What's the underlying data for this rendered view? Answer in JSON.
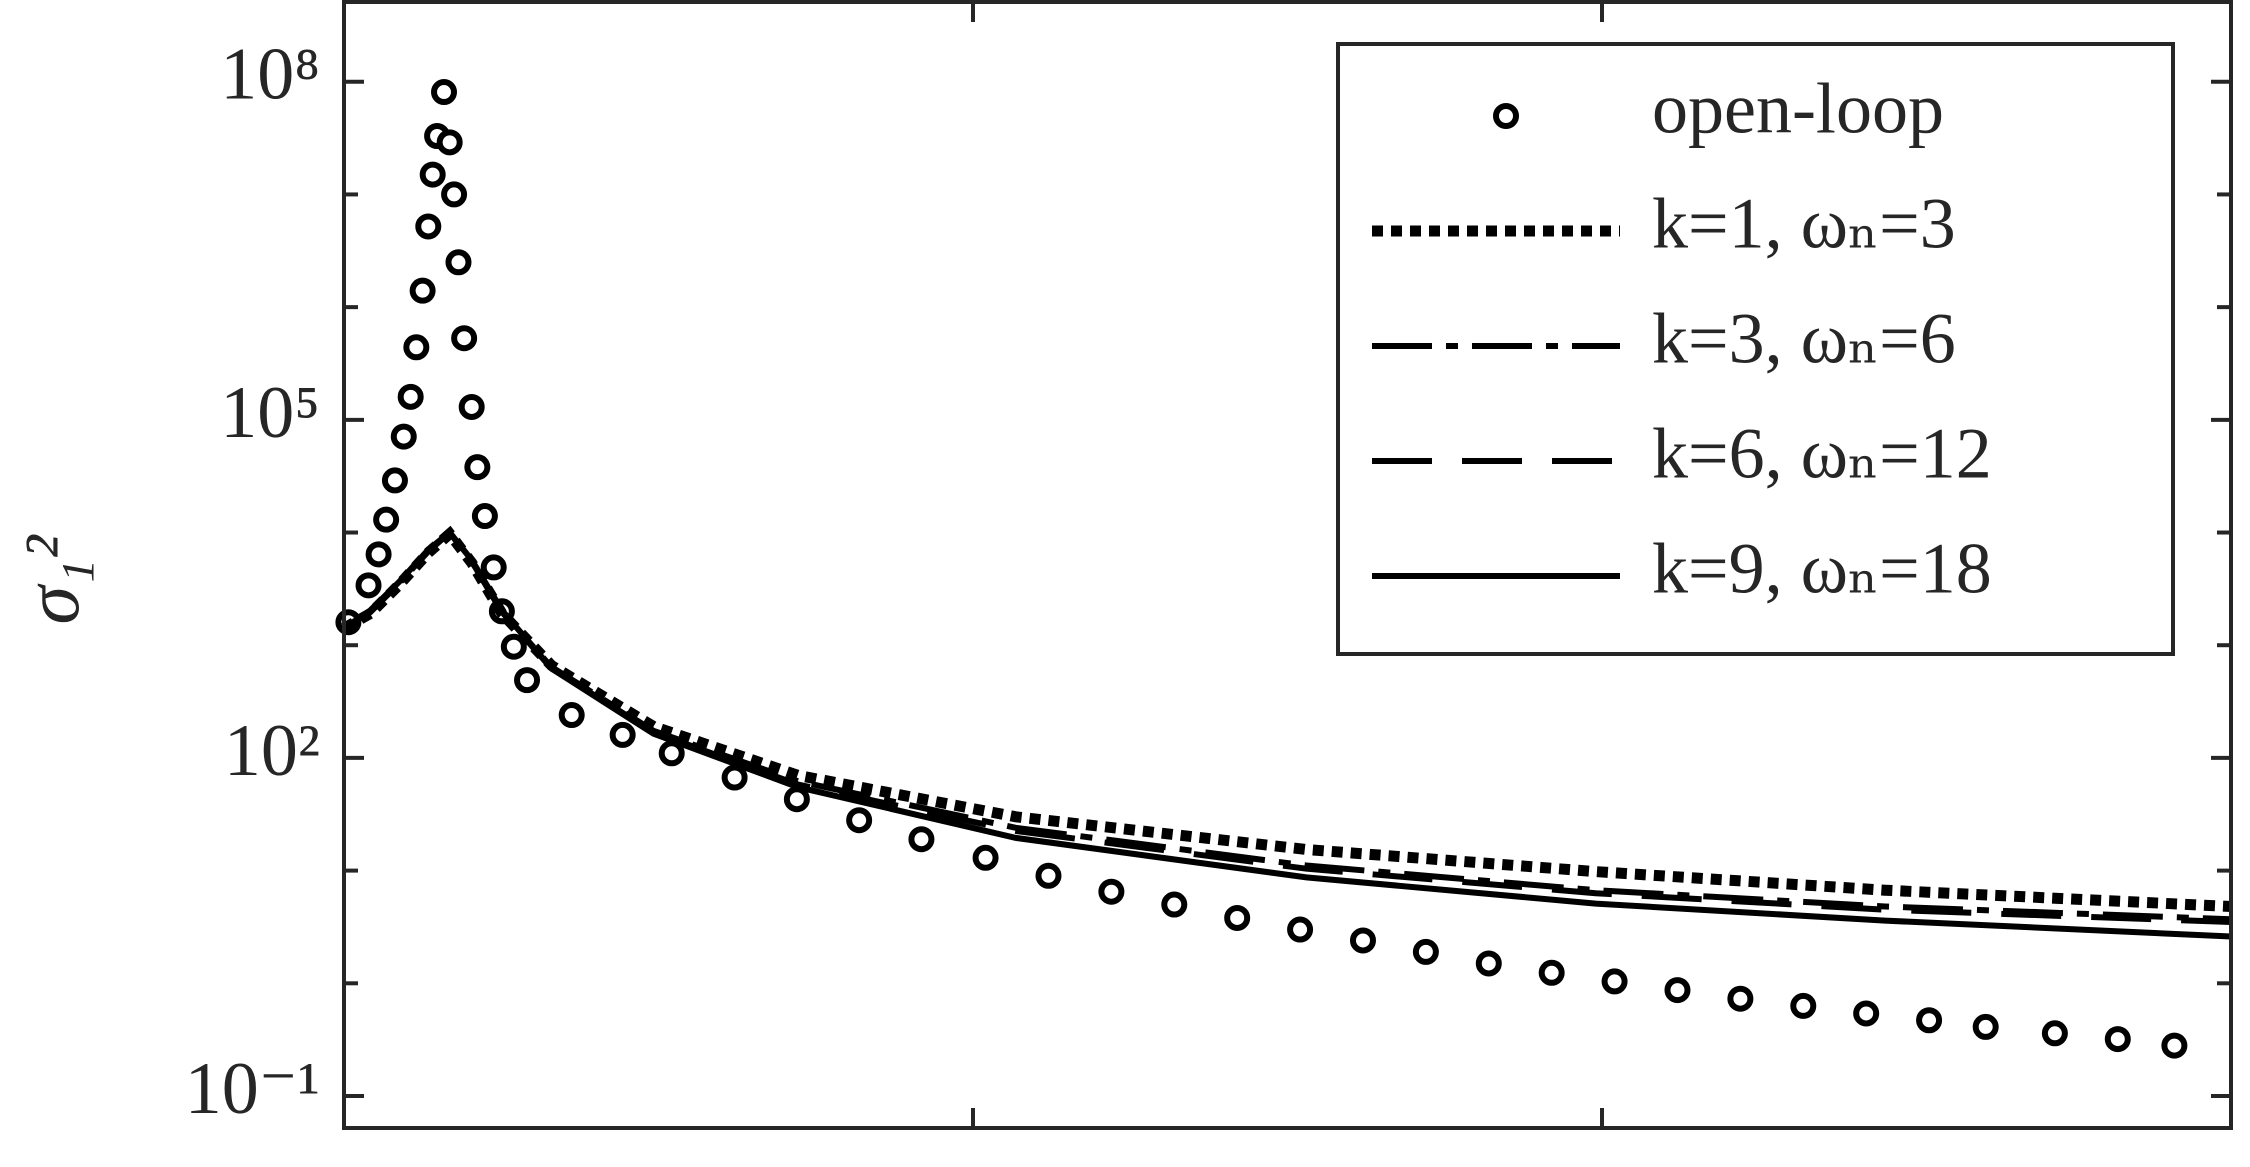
{
  "chart_data": {
    "type": "line",
    "ylabel": "σ₁²",
    "yscale": "log",
    "xlim": [
      0,
      30
    ],
    "xticks": [
      10,
      20
    ],
    "ylim": [
      0.052,
      510000000
    ],
    "yticks": [
      {
        "value": 0.1,
        "label": "10⁻¹"
      },
      {
        "value": 100,
        "label": "10²"
      },
      {
        "value": 100000,
        "label": "10⁵"
      },
      {
        "value": 100000000,
        "label": "10⁸"
      }
    ],
    "yminorticks": [
      1,
      10,
      1000,
      10000,
      1000000,
      10000000
    ],
    "legend": "upper right",
    "series": [
      {
        "name": "open-loop",
        "color": "#000000",
        "style": "markers",
        "x": [
          0.07,
          0.39,
          0.55,
          0.67,
          0.81,
          0.95,
          1.06,
          1.15,
          1.25,
          1.34,
          1.41,
          1.48,
          1.59,
          1.68,
          1.75,
          1.82,
          1.91,
          2.03,
          2.12,
          2.24,
          2.38,
          2.51,
          2.7,
          2.91,
          3.62,
          4.43,
          5.21,
          6.21,
          7.2,
          8.19,
          9.18,
          10.2,
          11.2,
          12.2,
          13.2,
          14.2,
          15.2,
          16.2,
          17.2,
          18.2,
          19.2,
          20.2,
          21.2,
          22.2,
          23.2,
          24.2,
          25.2,
          26.1,
          27.2,
          28.2,
          29.1
        ],
        "values": [
          1600,
          3400,
          6400,
          13000,
          29000,
          71000,
          160000,
          440000,
          1400000,
          5200000,
          15000000,
          33000000,
          81000000,
          29000000,
          10000000,
          2500000,
          530000,
          130000,
          38000,
          14000,
          4900,
          2000,
          970,
          490,
          240,
          160,
          110,
          67,
          43,
          28,
          19,
          13,
          9.0,
          6.5,
          5.0,
          3.8,
          3.0,
          2.4,
          1.9,
          1.5,
          1.24,
          1.04,
          0.87,
          0.73,
          0.63,
          0.54,
          0.47,
          0.41,
          0.36,
          0.32,
          0.28
        ]
      },
      {
        "name": "k=1, ωₙ=3",
        "color": "#000000",
        "style": "dotted",
        "x": [
          0,
          0.42,
          0.88,
          1.34,
          1.68,
          2.03,
          2.51,
          3.3,
          4.92,
          7.22,
          10.68,
          15.3,
          19.9,
          24.5,
          30
        ],
        "values": [
          1413,
          1910,
          3460,
          6620,
          9750,
          5390,
          1910,
          660,
          190,
          70,
          30,
          15.4,
          9.8,
          6.7,
          4.8
        ]
      },
      {
        "name": "k=3, ωₙ=6",
        "color": "#000000",
        "style": "dashdot",
        "x": [
          0,
          0.42,
          0.88,
          1.34,
          1.68,
          2.03,
          2.51,
          3.3,
          4.92,
          7.22,
          10.68,
          15.3,
          19.9,
          24.5,
          30
        ],
        "values": [
          1413,
          1970,
          3560,
          6830,
          10000,
          5550,
          1970,
          640,
          174,
          62,
          24,
          11.1,
          6.7,
          4.8,
          3.7
        ]
      },
      {
        "name": "k=6, ωₙ=12",
        "color": "#000000",
        "style": "dashed",
        "x": [
          0,
          0.42,
          0.88,
          1.34,
          1.68,
          2.03,
          2.51,
          3.3,
          4.92,
          7.22,
          10.68,
          15.3,
          19.9,
          24.5,
          30
        ],
        "values": [
          1413,
          1970,
          3560,
          6830,
          10000,
          5550,
          1970,
          620,
          169,
          58,
          22.5,
          10.4,
          6.3,
          4.5,
          3.5
        ]
      },
      {
        "name": "k=9, ωₙ=18",
        "color": "#000000",
        "style": "solid",
        "x": [
          0,
          0.42,
          0.88,
          1.34,
          1.68,
          2.03,
          2.51,
          3.3,
          4.92,
          7.22,
          10.68,
          15.3,
          19.9,
          24.5,
          30
        ],
        "values": [
          1413,
          2040,
          3670,
          7040,
          10000,
          5700,
          2040,
          620,
          164,
          55,
          19.5,
          8.7,
          5.1,
          3.6,
          2.6
        ]
      }
    ]
  }
}
